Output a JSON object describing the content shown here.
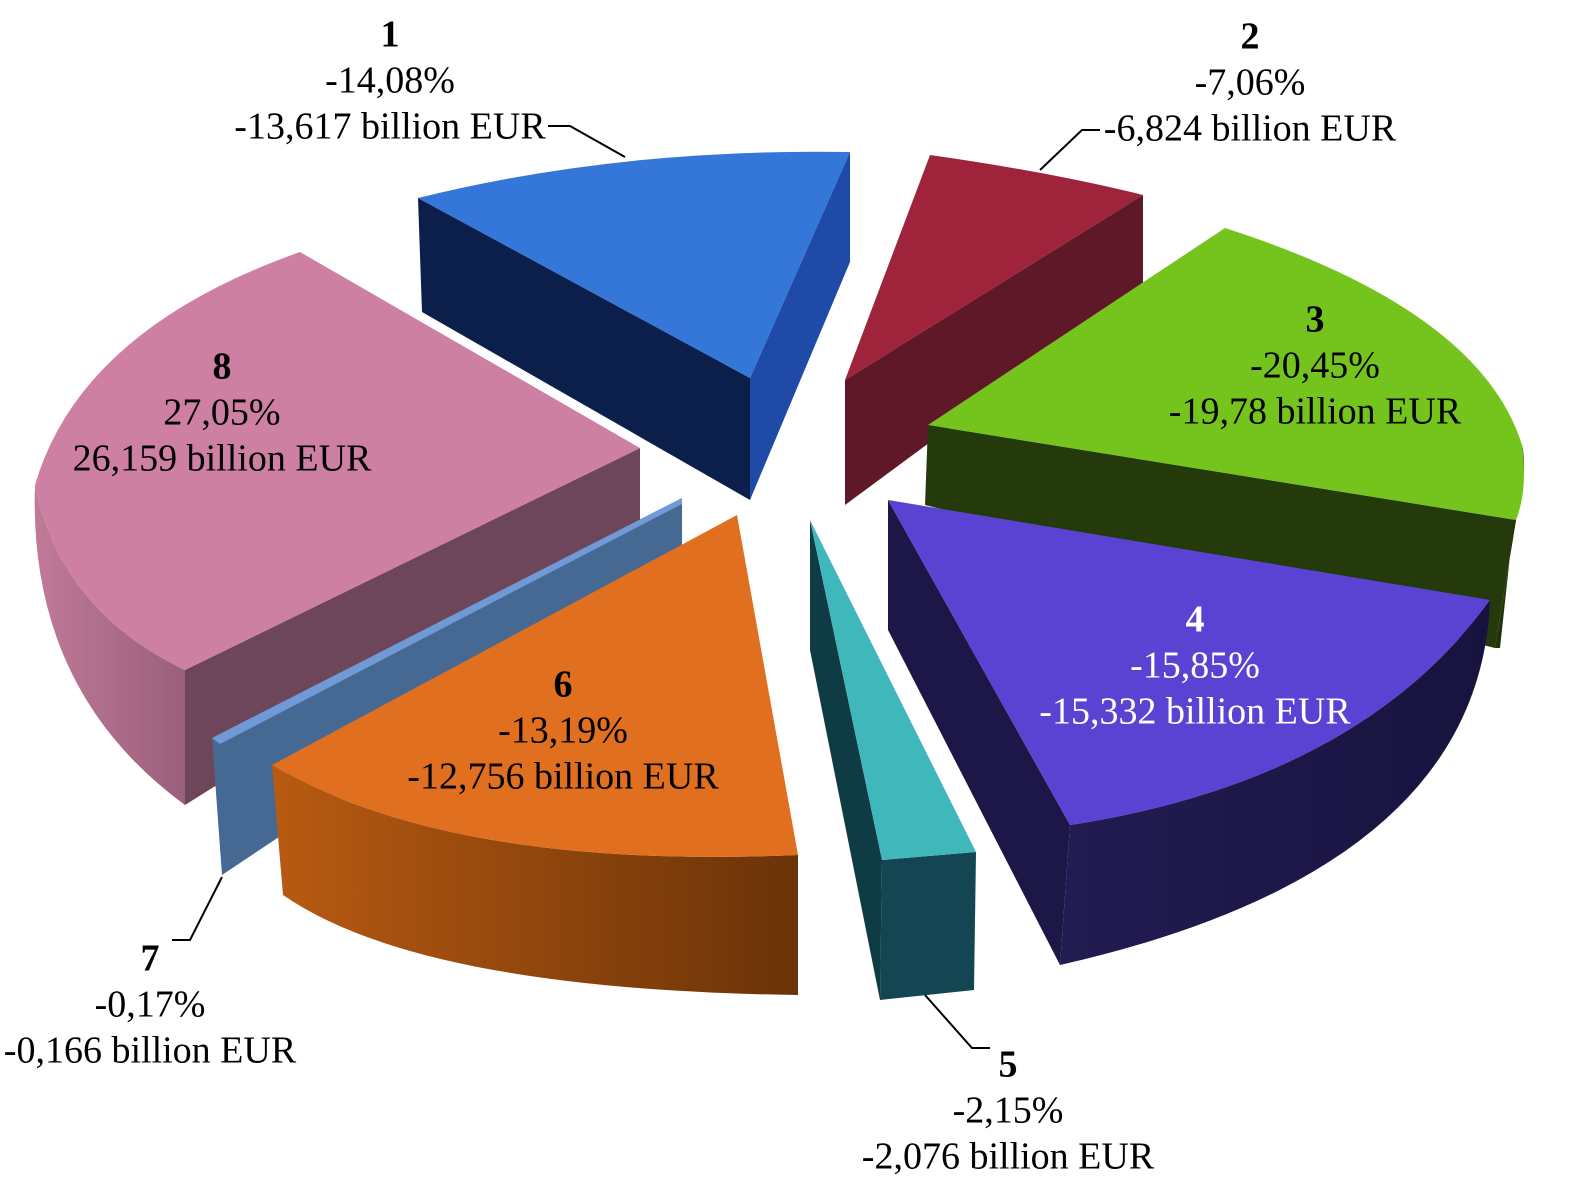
{
  "chart_data": {
    "type": "pie",
    "title": "",
    "slices": [
      {
        "label": "1",
        "percent": "-14,08%",
        "amount": "-13,617 billion EUR",
        "value": 14.08,
        "color": "#3577d9",
        "text_color": "#000000"
      },
      {
        "label": "2",
        "percent": "-7,06%",
        "amount": "-6,824 billion EUR",
        "value": 7.06,
        "color": "#a0233c",
        "text_color": "#000000"
      },
      {
        "label": "3",
        "percent": "-20,45%",
        "amount": "-19,78 billion EUR",
        "value": 20.45,
        "color": "#75c41e",
        "text_color": "#000000"
      },
      {
        "label": "4",
        "percent": "-15,85%",
        "amount": "-15,332 billion EUR",
        "value": 15.85,
        "color": "#5a43d3",
        "text_color": "#ffffff"
      },
      {
        "label": "5",
        "percent": "-2,15%",
        "amount": "-2,076 billion EUR",
        "value": 2.15,
        "color": "#40b7bb",
        "text_color": "#000000"
      },
      {
        "label": "6",
        "percent": "-13,19%",
        "amount": "-12,756 billion EUR",
        "value": 13.19,
        "color": "#e0701f",
        "text_color": "#000000"
      },
      {
        "label": "7",
        "percent": "-0,17%",
        "amount": "-0,166 billion EUR",
        "value": 0.17,
        "color": "#6f9ad6",
        "text_color": "#000000"
      },
      {
        "label": "8",
        "percent": "27,05%",
        "amount": "26,159 billion EUR",
        "value": 27.05,
        "color": "#ce80a3",
        "text_color": "#000000"
      }
    ]
  }
}
